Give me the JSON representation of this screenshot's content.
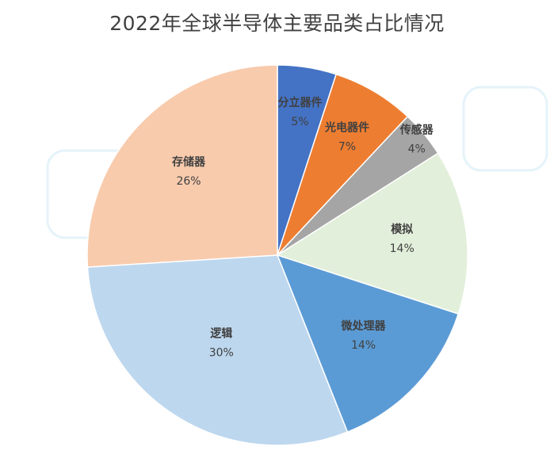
{
  "chart_data": {
    "type": "pie",
    "title": "2022年全球半导体主要品类占比情况",
    "categories": [
      "分立器件",
      "光电器件",
      "传感器",
      "模拟",
      "微处理器",
      "逻辑",
      "存储器"
    ],
    "values": [
      5,
      7,
      4,
      14,
      14,
      30,
      26
    ],
    "value_labels": [
      "5%",
      "7%",
      "4%",
      "14%",
      "14%",
      "30%",
      "26%"
    ],
    "colors": [
      "#4472c4",
      "#ed7d31",
      "#a5a5a5",
      "#e2efda",
      "#5b9bd5",
      "#bdd7ee",
      "#f8cbad"
    ],
    "start_angle_deg": 0,
    "direction": "clockwise",
    "legend": "none"
  }
}
